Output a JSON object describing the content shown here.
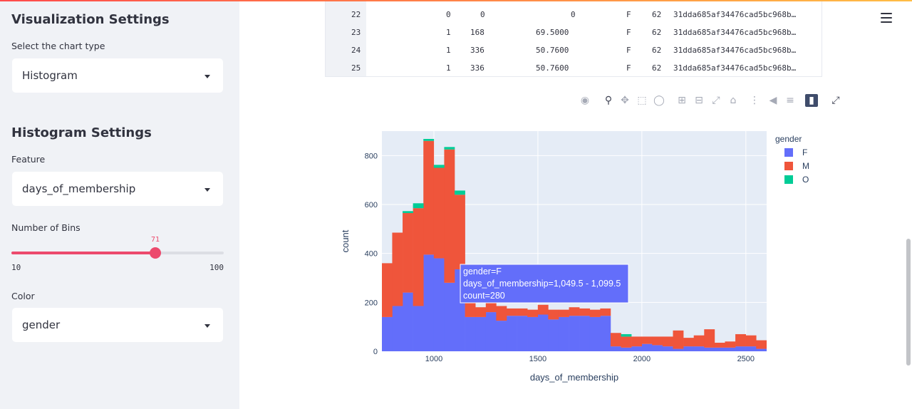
{
  "sidebar": {
    "title": "Visualization Settings",
    "chart_type_label": "Select the chart type",
    "chart_type_value": "Histogram",
    "histogram_title": "Histogram Settings",
    "feature_label": "Feature",
    "feature_value": "days_of_membership",
    "bins_label": "Number of Bins",
    "bins_value": "71",
    "bins_fraction": 0.678,
    "bins_min": "10",
    "bins_max": "100",
    "color_label": "Color",
    "color_value": "gender",
    "accent_color": "#ec4a6d"
  },
  "dataframe": {
    "rows": [
      [
        "22",
        "0",
        "0",
        "0",
        "F",
        "62",
        "31dda685af34476cad5bc968b…"
      ],
      [
        "23",
        "1",
        "168",
        "69.5000",
        "F",
        "62",
        "31dda685af34476cad5bc968b…"
      ],
      [
        "24",
        "1",
        "336",
        "50.7600",
        "F",
        "62",
        "31dda685af34476cad5bc968b…"
      ],
      [
        "25",
        "1",
        "336",
        "50.7600",
        "F",
        "62",
        "31dda685af34476cad5bc968b…"
      ]
    ]
  },
  "toolbar": {
    "icons": [
      "camera-icon",
      "zoom-icon",
      "pan-icon",
      "box-select-icon",
      "lasso-select-icon",
      "zoom-in-icon",
      "zoom-out-icon",
      "autoscale-icon",
      "reset-axes-icon",
      "spike-lines-icon",
      "hover-closest-icon",
      "hover-compare-icon",
      "plotly-logo-icon",
      "fullscreen-icon"
    ]
  },
  "chart_data": {
    "type": "bar",
    "stacked": true,
    "xlabel": "days_of_membership",
    "ylabel": "count",
    "xlim": [
      750,
      2600
    ],
    "ylim": [
      0,
      900
    ],
    "xticks": [
      1000,
      1500,
      2000,
      2500
    ],
    "yticks": [
      0,
      200,
      400,
      600,
      800
    ],
    "tick_labels_x": [
      "1000",
      "1500",
      "2000",
      "2500"
    ],
    "tick_labels_y": [
      "0",
      "200",
      "400",
      "600",
      "800"
    ],
    "grid": true,
    "legend_title": "gender",
    "legend_position": "top-right",
    "bin_width": 50,
    "bin_starts": [
      749.5,
      799.5,
      849.5,
      899.5,
      949.5,
      999.5,
      1049.5,
      1099.5,
      1149.5,
      1199.5,
      1249.5,
      1299.5,
      1349.5,
      1399.5,
      1449.5,
      1499.5,
      1549.5,
      1599.5,
      1649.5,
      1699.5,
      1749.5,
      1799.5,
      1849.5,
      1899.5,
      1949.5,
      1999.5,
      2049.5,
      2099.5,
      2149.5,
      2199.5,
      2249.5,
      2299.5,
      2349.5,
      2399.5,
      2449.5,
      2499.5,
      2549.5
    ],
    "series": [
      {
        "name": "F",
        "color": "#636efa",
        "values": [
          140,
          185,
          240,
          185,
          395,
          380,
          280,
          335,
          140,
          140,
          160,
          125,
          145,
          145,
          140,
          150,
          130,
          140,
          145,
          145,
          140,
          145,
          20,
          15,
          20,
          30,
          25,
          20,
          10,
          20,
          20,
          15,
          15,
          15,
          20,
          20,
          10
        ]
      },
      {
        "name": "M",
        "color": "#ef553b",
        "values": [
          220,
          300,
          325,
          400,
          465,
          370,
          545,
          305,
          70,
          40,
          55,
          60,
          30,
          30,
          30,
          40,
          40,
          30,
          35,
          30,
          30,
          30,
          55,
          45,
          40,
          30,
          35,
          40,
          75,
          35,
          45,
          75,
          20,
          25,
          50,
          45,
          35
        ]
      },
      {
        "name": "O",
        "color": "#00cc96",
        "values": [
          0,
          0,
          8,
          20,
          8,
          12,
          10,
          17,
          0,
          0,
          0,
          0,
          0,
          0,
          0,
          0,
          0,
          0,
          0,
          0,
          0,
          0,
          0,
          10,
          0,
          0,
          0,
          0,
          0,
          0,
          0,
          0,
          0,
          0,
          0,
          0,
          0
        ]
      }
    ],
    "tooltip": {
      "line1": "gender=F",
      "line2": "days_of_membership=1,049.5 - 1,099.5",
      "line3": "count=280",
      "bin_index": 6
    }
  }
}
